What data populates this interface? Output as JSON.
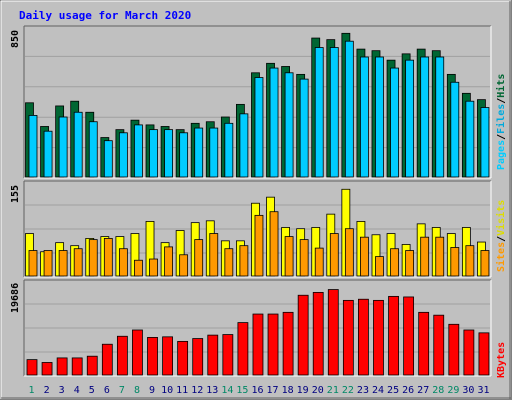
{
  "colors": {
    "background": "#c0c0c0",
    "panel": "#c0c0c0",
    "title": "#0000ff",
    "hits": "#006633",
    "files": "#00ccff",
    "pages": "#00ccff",
    "visits": "#ffff00",
    "sites": "#ff9900",
    "kbytes": "#ff0000",
    "weekend_label": "#008866",
    "weekday_label": "#000080"
  },
  "chart_data": [
    {
      "type": "bar",
      "title": "Daily usage for March 2020",
      "panel": "hits-files-pages",
      "ymax_label": "850",
      "ylabel_parts": [
        "Pages",
        "/",
        "Files",
        "/",
        "Hits"
      ],
      "categories": [
        "1",
        "2",
        "3",
        "4",
        "5",
        "6",
        "7",
        "8",
        "9",
        "10",
        "11",
        "12",
        "13",
        "14",
        "15",
        "16",
        "17",
        "18",
        "19",
        "20",
        "21",
        "22",
        "23",
        "24",
        "25",
        "26",
        "27",
        "28",
        "29",
        "30",
        "31"
      ],
      "series": [
        {
          "name": "Hits",
          "values": [
            470,
            320,
            450,
            480,
            410,
            250,
            300,
            360,
            330,
            320,
            300,
            340,
            350,
            380,
            460,
            660,
            720,
            700,
            650,
            880,
            870,
            910,
            810,
            800,
            740,
            780,
            810,
            800,
            650,
            530,
            490
          ]
        },
        {
          "name": "Files",
          "values": [
            390,
            290,
            380,
            410,
            350,
            230,
            280,
            330,
            300,
            300,
            280,
            310,
            310,
            340,
            400,
            630,
            690,
            660,
            620,
            820,
            820,
            860,
            760,
            760,
            690,
            740,
            760,
            760,
            600,
            480,
            440
          ]
        }
      ],
      "ylim": [
        0,
        950
      ]
    },
    {
      "type": "bar",
      "panel": "visits-sites",
      "ymax_label": "155",
      "ylabel_parts": [
        "Sites",
        "/",
        "Visits"
      ],
      "categories": [
        "1",
        "2",
        "3",
        "4",
        "5",
        "6",
        "7",
        "8",
        "9",
        "10",
        "11",
        "12",
        "13",
        "14",
        "15",
        "16",
        "17",
        "18",
        "19",
        "20",
        "21",
        "22",
        "23",
        "24",
        "25",
        "26",
        "27",
        "28",
        "29",
        "30",
        "31"
      ],
      "series": [
        {
          "name": "Visits",
          "values": [
            70,
            40,
            55,
            50,
            62,
            65,
            65,
            70,
            90,
            55,
            75,
            88,
            91,
            58,
            58,
            120,
            130,
            80,
            78,
            80,
            102,
            143,
            90,
            68,
            70,
            52,
            86,
            80,
            70,
            80,
            56
          ]
        },
        {
          "name": "Sites",
          "values": [
            42,
            42,
            42,
            45,
            60,
            62,
            45,
            26,
            28,
            48,
            35,
            60,
            70,
            45,
            50,
            100,
            106,
            65,
            60,
            46,
            70,
            78,
            64,
            32,
            45,
            42,
            64,
            64,
            47,
            50,
            42
          ]
        }
      ],
      "ylim": [
        0,
        155
      ]
    },
    {
      "type": "bar",
      "panel": "kbytes",
      "ymax_label": "19686",
      "ylabel_parts": [
        "KBytes"
      ],
      "categories": [
        "1",
        "2",
        "3",
        "4",
        "5",
        "6",
        "7",
        "8",
        "9",
        "10",
        "11",
        "12",
        "13",
        "14",
        "15",
        "16",
        "17",
        "18",
        "19",
        "20",
        "21",
        "22",
        "23",
        "24",
        "25",
        "26",
        "27",
        "28",
        "29",
        "30",
        "31"
      ],
      "series": [
        {
          "name": "KBytes",
          "values": [
            2700,
            2200,
            3000,
            3000,
            3300,
            5400,
            6800,
            7900,
            6600,
            6700,
            5900,
            6400,
            7000,
            7100,
            9200,
            10700,
            10700,
            11000,
            14000,
            14500,
            15000,
            13100,
            13300,
            13100,
            13800,
            13700,
            11000,
            10500,
            8900,
            7900,
            7400
          ]
        }
      ],
      "ylim": [
        0,
        16500
      ]
    }
  ],
  "weekend_days": [
    1,
    7,
    8,
    14,
    15,
    21,
    22,
    28,
    29
  ]
}
